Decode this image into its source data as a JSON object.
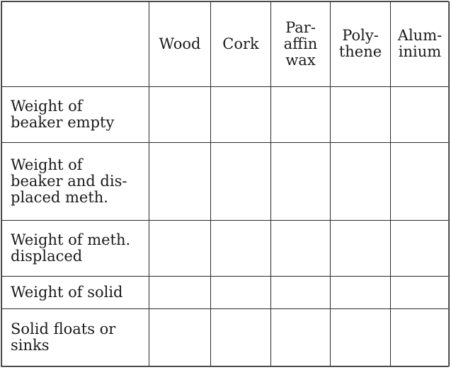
{
  "table": {
    "columns": [
      "Wood",
      "Cork",
      "Par-\naffin\nwax",
      "Poly-\nthene",
      "Alum-\ninium"
    ],
    "rows": [
      {
        "label": "Weight of\n beaker empty"
      },
      {
        "label": "Weight of\n beaker and dis-\n placed meth."
      },
      {
        "label": "Weight of meth.\n displaced"
      },
      {
        "label": "Weight of solid"
      },
      {
        "label": "Solid floats or\n sinks"
      }
    ]
  }
}
